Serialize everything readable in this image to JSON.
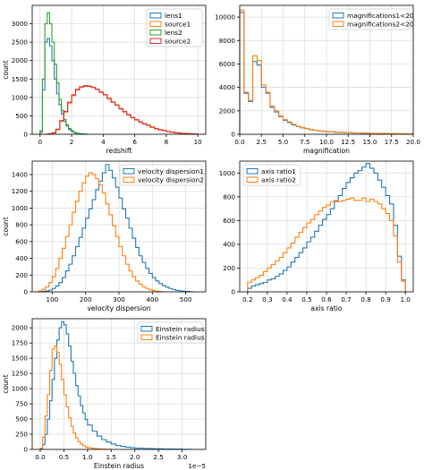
{
  "chart_data": [
    {
      "type": "histogram",
      "xlabel": "redshift",
      "ylabel": "count",
      "xlim": [
        -0.5,
        10.5
      ],
      "ylim": [
        0,
        3500
      ],
      "xticks": [
        0,
        2,
        4,
        6,
        8,
        10
      ],
      "yticks": [
        0,
        500,
        1000,
        1500,
        2000,
        2500,
        3000
      ],
      "grid": true,
      "legend_position": "top-right",
      "series": [
        {
          "name": "lens1",
          "color": "#1f77b4",
          "x": [
            0.0,
            0.15,
            0.3,
            0.45,
            0.6,
            0.75,
            0.9,
            1.05,
            1.2,
            1.35,
            1.5,
            1.65,
            1.8,
            1.95,
            2.1,
            2.25,
            2.4,
            2.55,
            2.7,
            2.85,
            3.0
          ],
          "y": [
            60,
            1200,
            2500,
            2600,
            2400,
            2000,
            1500,
            1100,
            800,
            550,
            350,
            220,
            130,
            80,
            50,
            30,
            20,
            10,
            5,
            3,
            0
          ]
        },
        {
          "name": "source1",
          "color": "#ff7f0e",
          "x": [
            0.0,
            0.25,
            0.5,
            0.75,
            1.0,
            1.25,
            1.5,
            1.75,
            2.0,
            2.25,
            2.5,
            2.75,
            3.0,
            3.25,
            3.5,
            3.75,
            4.0,
            4.25,
            4.5,
            4.75,
            5.0,
            5.25,
            5.5,
            5.75,
            6.0,
            6.25,
            6.5,
            6.75,
            7.0,
            7.25,
            7.5,
            7.75,
            8.0,
            8.25,
            8.5,
            8.75,
            9.0,
            9.25,
            9.5,
            9.75,
            10.0
          ],
          "y": [
            0,
            0,
            5,
            30,
            120,
            350,
            600,
            850,
            1050,
            1200,
            1280,
            1300,
            1310,
            1280,
            1230,
            1150,
            1080,
            980,
            880,
            800,
            700,
            620,
            540,
            460,
            400,
            340,
            290,
            250,
            200,
            160,
            130,
            105,
            80,
            60,
            45,
            35,
            25,
            20,
            15,
            10,
            0
          ]
        },
        {
          "name": "lens2",
          "color": "#2ca02c",
          "x": [
            0.0,
            0.15,
            0.3,
            0.45,
            0.6,
            0.75,
            0.9,
            1.05,
            1.2,
            1.35,
            1.5,
            1.65,
            1.8,
            1.95,
            2.1,
            2.25,
            2.4,
            2.55,
            2.7,
            2.85,
            3.0
          ],
          "y": [
            100,
            1500,
            3000,
            3300,
            3000,
            2500,
            1900,
            1400,
            950,
            650,
            400,
            260,
            160,
            100,
            60,
            35,
            20,
            10,
            5,
            3,
            0
          ]
        },
        {
          "name": "source2",
          "color": "#d62728",
          "x": [
            0.0,
            0.25,
            0.5,
            0.75,
            1.0,
            1.25,
            1.5,
            1.75,
            2.0,
            2.25,
            2.5,
            2.75,
            3.0,
            3.25,
            3.5,
            3.75,
            4.0,
            4.25,
            4.5,
            4.75,
            5.0,
            5.25,
            5.5,
            5.75,
            6.0,
            6.25,
            6.5,
            6.75,
            7.0,
            7.25,
            7.5,
            7.75,
            8.0,
            8.25,
            8.5,
            8.75,
            9.0,
            9.25,
            9.5,
            9.75,
            10.0
          ],
          "y": [
            0,
            0,
            10,
            40,
            140,
            370,
            620,
            870,
            1070,
            1220,
            1290,
            1320,
            1300,
            1270,
            1220,
            1140,
            1070,
            970,
            870,
            790,
            690,
            610,
            530,
            450,
            390,
            330,
            280,
            240,
            190,
            150,
            120,
            100,
            75,
            55,
            40,
            30,
            22,
            18,
            12,
            8,
            0
          ]
        }
      ]
    },
    {
      "type": "histogram",
      "xlabel": "magnification",
      "ylabel": "",
      "xlim": [
        0,
        20
      ],
      "ylim": [
        0,
        11000
      ],
      "xticks": [
        0.0,
        2.5,
        5.0,
        7.5,
        10.0,
        12.5,
        15.0,
        17.5,
        20.0
      ],
      "yticks": [
        0,
        2000,
        4000,
        6000,
        8000,
        10000
      ],
      "grid": true,
      "legend_position": "top-right",
      "series": [
        {
          "name": "magnifications1<20",
          "color": "#1f77b4",
          "x": [
            0.0,
            0.5,
            1.0,
            1.5,
            2.0,
            2.5,
            3.0,
            3.5,
            4.0,
            4.5,
            5.0,
            5.5,
            6.0,
            6.5,
            7.0,
            7.5,
            8.0,
            8.5,
            9.0,
            9.5,
            10.0,
            11.0,
            12.0,
            13.0,
            14.0,
            15.0,
            16.0,
            17.0,
            18.0,
            19.0,
            20.0
          ],
          "y": [
            10400,
            3500,
            2800,
            6200,
            5900,
            4000,
            3500,
            2300,
            1900,
            1500,
            1200,
            1000,
            800,
            650,
            550,
            480,
            400,
            340,
            290,
            250,
            210,
            170,
            140,
            110,
            90,
            70,
            60,
            50,
            40,
            30,
            0
          ]
        },
        {
          "name": "magnifications2<20",
          "color": "#ff7f0e",
          "x": [
            0.0,
            0.5,
            1.0,
            1.5,
            2.0,
            2.5,
            3.0,
            3.5,
            4.0,
            4.5,
            5.0,
            5.5,
            6.0,
            6.5,
            7.0,
            7.5,
            8.0,
            8.5,
            9.0,
            9.5,
            10.0,
            11.0,
            12.0,
            13.0,
            14.0,
            15.0,
            16.0,
            17.0,
            18.0,
            19.0,
            20.0
          ],
          "y": [
            10600,
            3600,
            2900,
            6700,
            6300,
            4200,
            3600,
            2400,
            2000,
            1550,
            1250,
            1050,
            850,
            680,
            580,
            500,
            420,
            350,
            300,
            260,
            220,
            175,
            145,
            115,
            95,
            75,
            62,
            52,
            42,
            32,
            0
          ]
        }
      ]
    },
    {
      "type": "histogram",
      "xlabel": "velocity dispersion",
      "ylabel": "count",
      "xlim": [
        40,
        560
      ],
      "ylim": [
        0,
        1560
      ],
      "xticks": [
        100,
        200,
        300,
        400,
        500
      ],
      "yticks": [
        0,
        200,
        400,
        600,
        800,
        1000,
        1200,
        1400
      ],
      "grid": true,
      "legend_position": "top-right",
      "series": [
        {
          "name": "velocity dispersion1",
          "color": "#1f77b4",
          "x": [
            60,
            70,
            80,
            90,
            100,
            110,
            120,
            130,
            140,
            150,
            160,
            170,
            180,
            190,
            200,
            210,
            220,
            230,
            240,
            250,
            260,
            270,
            280,
            290,
            300,
            310,
            320,
            330,
            340,
            350,
            360,
            370,
            380,
            390,
            400,
            410,
            420,
            430,
            440,
            450,
            460,
            470,
            480,
            490,
            500,
            510,
            520
          ],
          "y": [
            0,
            5,
            10,
            20,
            40,
            70,
            110,
            170,
            250,
            330,
            430,
            540,
            650,
            760,
            880,
            990,
            1100,
            1220,
            1320,
            1420,
            1520,
            1450,
            1360,
            1250,
            1120,
            990,
            880,
            760,
            640,
            530,
            430,
            350,
            280,
            220,
            170,
            130,
            100,
            75,
            55,
            40,
            28,
            18,
            12,
            8,
            5,
            2,
            0
          ]
        },
        {
          "name": "velocity dispersion2",
          "color": "#ff7f0e",
          "x": [
            50,
            60,
            70,
            80,
            90,
            100,
            110,
            120,
            130,
            140,
            150,
            160,
            170,
            180,
            190,
            200,
            210,
            220,
            230,
            240,
            250,
            260,
            270,
            280,
            290,
            300,
            310,
            320,
            330,
            340,
            350,
            360,
            370,
            380,
            390,
            400,
            410,
            420,
            430
          ],
          "y": [
            0,
            10,
            30,
            60,
            110,
            180,
            280,
            400,
            520,
            660,
            800,
            950,
            1080,
            1200,
            1300,
            1380,
            1420,
            1400,
            1350,
            1280,
            1180,
            1050,
            920,
            790,
            660,
            540,
            430,
            330,
            250,
            180,
            130,
            90,
            60,
            40,
            25,
            15,
            8,
            4,
            0
          ]
        }
      ]
    },
    {
      "type": "histogram",
      "xlabel": "axis ratio",
      "ylabel": "",
      "xlim": [
        0.16,
        1.04
      ],
      "ylim": [
        0,
        1100
      ],
      "xticks": [
        0.2,
        0.3,
        0.4,
        0.5,
        0.6,
        0.7,
        0.8,
        0.9,
        1.0
      ],
      "yticks": [
        0,
        200,
        400,
        600,
        800,
        1000
      ],
      "grid": true,
      "legend_position": "top-left",
      "series": [
        {
          "name": "axis ratio1",
          "color": "#1f77b4",
          "x": [
            0.2,
            0.22,
            0.24,
            0.26,
            0.28,
            0.3,
            0.32,
            0.34,
            0.36,
            0.38,
            0.4,
            0.42,
            0.44,
            0.46,
            0.48,
            0.5,
            0.52,
            0.54,
            0.56,
            0.58,
            0.6,
            0.62,
            0.64,
            0.66,
            0.68,
            0.7,
            0.72,
            0.74,
            0.76,
            0.78,
            0.8,
            0.82,
            0.84,
            0.86,
            0.88,
            0.9,
            0.92,
            0.94,
            0.96,
            0.98,
            1.0
          ],
          "y": [
            30,
            50,
            60,
            70,
            80,
            100,
            110,
            130,
            150,
            180,
            210,
            250,
            290,
            330,
            370,
            420,
            460,
            510,
            560,
            610,
            650,
            700,
            760,
            810,
            870,
            920,
            960,
            1000,
            1020,
            1050,
            1080,
            1040,
            1000,
            940,
            880,
            810,
            740,
            560,
            300,
            100,
            0
          ]
        },
        {
          "name": "axis ratio2",
          "color": "#ff7f0e",
          "x": [
            0.2,
            0.22,
            0.24,
            0.26,
            0.28,
            0.3,
            0.32,
            0.34,
            0.36,
            0.38,
            0.4,
            0.42,
            0.44,
            0.46,
            0.48,
            0.5,
            0.52,
            0.54,
            0.56,
            0.58,
            0.6,
            0.62,
            0.64,
            0.66,
            0.68,
            0.7,
            0.72,
            0.74,
            0.76,
            0.78,
            0.8,
            0.82,
            0.84,
            0.86,
            0.88,
            0.9,
            0.92,
            0.94,
            0.96,
            0.98,
            1.0
          ],
          "y": [
            80,
            100,
            120,
            140,
            170,
            200,
            230,
            260,
            290,
            330,
            370,
            410,
            460,
            500,
            540,
            580,
            610,
            650,
            680,
            710,
            730,
            760,
            770,
            760,
            770,
            780,
            790,
            770,
            770,
            790,
            760,
            780,
            760,
            740,
            700,
            660,
            600,
            470,
            250,
            90,
            0
          ]
        }
      ]
    },
    {
      "type": "histogram",
      "xlabel": "Einstein radius",
      "ylabel": "count",
      "xlim": [
        -0.17,
        3.5
      ],
      "ylim": [
        0,
        2150
      ],
      "xticks": [
        0.0,
        0.5,
        1.0,
        1.5,
        2.0,
        2.5,
        3.0
      ],
      "yticks": [
        0,
        250,
        500,
        750,
        1000,
        1250,
        1500,
        1750,
        2000
      ],
      "x_offset_label": "1e−5",
      "grid": true,
      "legend_position": "top-right",
      "series": [
        {
          "name": "Einstein radius",
          "color": "#1f77b4",
          "x": [
            0.0,
            0.05,
            0.1,
            0.15,
            0.2,
            0.25,
            0.3,
            0.35,
            0.4,
            0.45,
            0.5,
            0.55,
            0.6,
            0.65,
            0.7,
            0.75,
            0.8,
            0.85,
            0.9,
            0.95,
            1.0,
            1.1,
            1.2,
            1.3,
            1.4,
            1.5,
            1.6,
            1.7,
            1.8,
            1.9,
            2.0,
            2.2,
            2.4,
            2.6,
            2.8,
            3.0,
            3.2
          ],
          "y": [
            10,
            80,
            250,
            500,
            800,
            1150,
            1500,
            1800,
            2000,
            2100,
            2050,
            1900,
            1700,
            1450,
            1250,
            1050,
            880,
            720,
            600,
            490,
            400,
            300,
            220,
            160,
            120,
            90,
            65,
            50,
            38,
            28,
            20,
            14,
            10,
            6,
            4,
            2,
            0
          ]
        },
        {
          "name": "Einstein radius",
          "color": "#ff7f0e",
          "x": [
            0.0,
            0.05,
            0.1,
            0.15,
            0.2,
            0.25,
            0.3,
            0.35,
            0.4,
            0.45,
            0.5,
            0.55,
            0.6,
            0.65,
            0.7,
            0.75,
            0.8,
            0.85,
            0.9,
            0.95,
            1.0,
            1.1,
            1.2,
            1.3,
            1.4,
            1.5
          ],
          "y": [
            20,
            200,
            550,
            900,
            1300,
            1650,
            1700,
            1600,
            1400,
            1150,
            900,
            700,
            520,
            380,
            270,
            190,
            130,
            90,
            60,
            40,
            25,
            15,
            8,
            4,
            2,
            0
          ]
        }
      ]
    }
  ]
}
